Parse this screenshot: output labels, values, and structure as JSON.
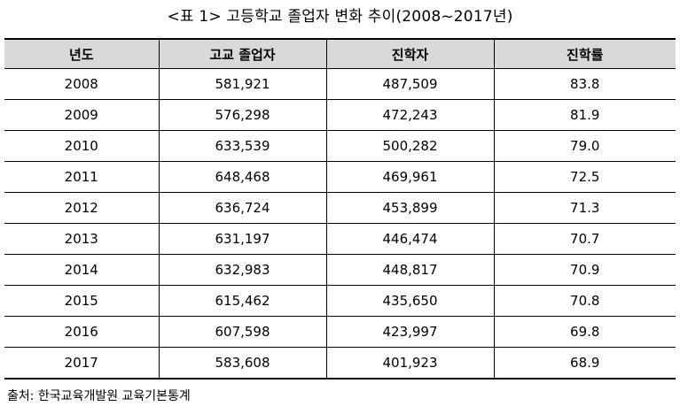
{
  "title": "<표 1> 고등학교 졸업자 변화 추이(2008~2017년)",
  "table": {
    "headers": [
      "년도",
      "고교 졸업자",
      "진학자",
      "진학률"
    ],
    "rows": [
      [
        "2008",
        "581,921",
        "487,509",
        "83.8"
      ],
      [
        "2009",
        "576,298",
        "472,243",
        "81.9"
      ],
      [
        "2010",
        "633,539",
        "500,282",
        "79.0"
      ],
      [
        "2011",
        "648,468",
        "469,961",
        "72.5"
      ],
      [
        "2012",
        "636,724",
        "453,899",
        "71.3"
      ],
      [
        "2013",
        "631,197",
        "446,474",
        "70.7"
      ],
      [
        "2014",
        "632,983",
        "448,817",
        "70.9"
      ],
      [
        "2015",
        "615,462",
        "435,650",
        "70.8"
      ],
      [
        "2016",
        "607,598",
        "423,997",
        "69.8"
      ],
      [
        "2017",
        "583,608",
        "401,923",
        "68.9"
      ]
    ]
  },
  "source": "출처: 한국교육개발원 교육기본통계"
}
